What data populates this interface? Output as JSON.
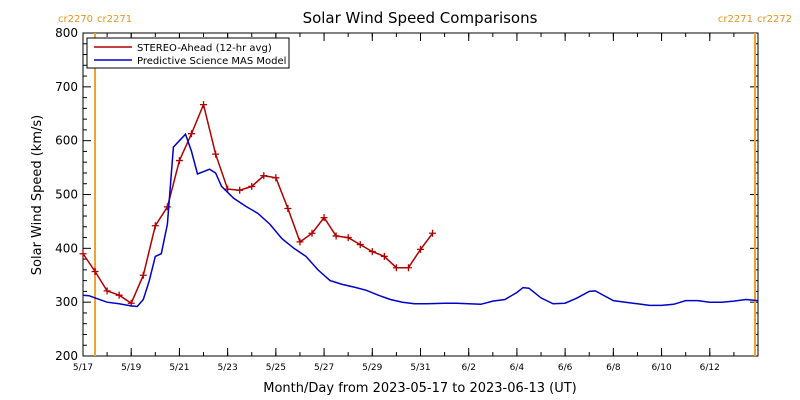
{
  "chart_data": {
    "type": "line",
    "title": "Solar Wind Speed Comparisons",
    "xlabel": "Month/Day from 2023-05-17 to 2023-06-13 (UT)",
    "ylabel": "Solar Wind Speed (km/s)",
    "xlim": [
      "2023-05-17",
      "2023-06-14"
    ],
    "ylim": [
      200,
      800
    ],
    "y_ticks": [
      200,
      300,
      400,
      500,
      600,
      700,
      800
    ],
    "x_ticks": [
      {
        "date": "2023-05-17",
        "label": "5/17"
      },
      {
        "date": "2023-05-19",
        "label": "5/19"
      },
      {
        "date": "2023-05-21",
        "label": "5/21"
      },
      {
        "date": "2023-05-23",
        "label": "5/23"
      },
      {
        "date": "2023-05-25",
        "label": "5/25"
      },
      {
        "date": "2023-05-27",
        "label": "5/27"
      },
      {
        "date": "2023-05-29",
        "label": "5/29"
      },
      {
        "date": "2023-05-31",
        "label": "5/31"
      },
      {
        "date": "2023-06-02",
        "label": "6/2"
      },
      {
        "date": "2023-06-04",
        "label": "6/4"
      },
      {
        "date": "2023-06-06",
        "label": "6/6"
      },
      {
        "date": "2023-06-08",
        "label": "6/8"
      },
      {
        "date": "2023-06-10",
        "label": "6/10"
      },
      {
        "date": "2023-06-12",
        "label": "6/12"
      }
    ],
    "carrington_markers": [
      {
        "date": "2023-05-17 12:00",
        "color": "#f0a030",
        "label_left": "cr2270",
        "label_right": "cr2271"
      },
      {
        "date": "2023-06-13 21:00",
        "color": "#f0a030",
        "label_left": "cr2271",
        "label_right": "cr2272"
      }
    ],
    "legend_position": "top-left",
    "grid": false,
    "series": [
      {
        "name": "STEREO-Ahead (12-hr avg)",
        "color": "#b00000",
        "markers": "plus",
        "points": [
          [
            "2023-05-17 00:00",
            390
          ],
          [
            "2023-05-17 12:00",
            357
          ],
          [
            "2023-05-18 00:00",
            321
          ],
          [
            "2023-05-18 12:00",
            313
          ],
          [
            "2023-05-19 00:00",
            298
          ],
          [
            "2023-05-19 12:00",
            350
          ],
          [
            "2023-05-20 00:00",
            442
          ],
          [
            "2023-05-20 12:00",
            477
          ],
          [
            "2023-05-21 00:00",
            563
          ],
          [
            "2023-05-21 12:00",
            613
          ],
          [
            "2023-05-22 00:00",
            667
          ],
          [
            "2023-05-22 12:00",
            575
          ],
          [
            "2023-05-23 00:00",
            510
          ],
          [
            "2023-05-23 12:00",
            508
          ],
          [
            "2023-05-24 00:00",
            515
          ],
          [
            "2023-05-24 12:00",
            535
          ],
          [
            "2023-05-25 00:00",
            531
          ],
          [
            "2023-05-25 12:00",
            474
          ],
          [
            "2023-05-26 00:00",
            412
          ],
          [
            "2023-05-26 12:00",
            428
          ],
          [
            "2023-05-27 00:00",
            457
          ],
          [
            "2023-05-27 12:00",
            423
          ],
          [
            "2023-05-28 00:00",
            420
          ],
          [
            "2023-05-28 12:00",
            407
          ],
          [
            "2023-05-29 00:00",
            394
          ],
          [
            "2023-05-29 12:00",
            385
          ],
          [
            "2023-05-30 00:00",
            364
          ],
          [
            "2023-05-30 12:00",
            364
          ],
          [
            "2023-05-31 00:00",
            398
          ],
          [
            "2023-05-31 12:00",
            428
          ]
        ]
      },
      {
        "name": "Predictive Science MAS Model",
        "color": "#0000c8",
        "markers": "none",
        "points": [
          [
            "2023-05-17 00:00",
            313
          ],
          [
            "2023-05-17 06:00",
            312
          ],
          [
            "2023-05-17 12:00",
            308
          ],
          [
            "2023-05-18 00:00",
            300
          ],
          [
            "2023-05-18 12:00",
            297
          ],
          [
            "2023-05-19 00:00",
            293
          ],
          [
            "2023-05-19 06:00",
            292
          ],
          [
            "2023-05-19 12:00",
            305
          ],
          [
            "2023-05-19 18:00",
            340
          ],
          [
            "2023-05-20 00:00",
            385
          ],
          [
            "2023-05-20 06:00",
            390
          ],
          [
            "2023-05-20 12:00",
            445
          ],
          [
            "2023-05-20 18:00",
            588
          ],
          [
            "2023-05-21 06:00",
            612
          ],
          [
            "2023-05-21 12:00",
            580
          ],
          [
            "2023-05-21 18:00",
            538
          ],
          [
            "2023-05-22 06:00",
            547
          ],
          [
            "2023-05-22 12:00",
            540
          ],
          [
            "2023-05-22 18:00",
            515
          ],
          [
            "2023-05-23 06:00",
            493
          ],
          [
            "2023-05-23 18:00",
            478
          ],
          [
            "2023-05-24 06:00",
            465
          ],
          [
            "2023-05-24 18:00",
            445
          ],
          [
            "2023-05-25 06:00",
            418
          ],
          [
            "2023-05-25 18:00",
            400
          ],
          [
            "2023-05-26 06:00",
            385
          ],
          [
            "2023-05-26 18:00",
            360
          ],
          [
            "2023-05-27 06:00",
            340
          ],
          [
            "2023-05-27 18:00",
            333
          ],
          [
            "2023-05-28 06:00",
            328
          ],
          [
            "2023-05-28 18:00",
            322
          ],
          [
            "2023-05-29 06:00",
            313
          ],
          [
            "2023-05-29 18:00",
            305
          ],
          [
            "2023-05-30 06:00",
            300
          ],
          [
            "2023-05-30 18:00",
            297
          ],
          [
            "2023-05-31 06:00",
            297
          ],
          [
            "2023-06-01 00:00",
            298
          ],
          [
            "2023-06-01 12:00",
            298
          ],
          [
            "2023-06-02 00:00",
            297
          ],
          [
            "2023-06-02 12:00",
            296
          ],
          [
            "2023-06-03 00:00",
            302
          ],
          [
            "2023-06-03 12:00",
            305
          ],
          [
            "2023-06-04 00:00",
            318
          ],
          [
            "2023-06-04 06:00",
            327
          ],
          [
            "2023-06-04 12:00",
            326
          ],
          [
            "2023-06-05 00:00",
            308
          ],
          [
            "2023-06-05 12:00",
            297
          ],
          [
            "2023-06-06 00:00",
            298
          ],
          [
            "2023-06-06 12:00",
            308
          ],
          [
            "2023-06-07 00:00",
            320
          ],
          [
            "2023-06-07 06:00",
            321
          ],
          [
            "2023-06-07 12:00",
            315
          ],
          [
            "2023-06-08 00:00",
            303
          ],
          [
            "2023-06-08 12:00",
            300
          ],
          [
            "2023-06-09 00:00",
            297
          ],
          [
            "2023-06-09 12:00",
            294
          ],
          [
            "2023-06-10 00:00",
            294
          ],
          [
            "2023-06-10 12:00",
            296
          ],
          [
            "2023-06-11 00:00",
            303
          ],
          [
            "2023-06-11 12:00",
            303
          ],
          [
            "2023-06-12 00:00",
            300
          ],
          [
            "2023-06-12 12:00",
            300
          ],
          [
            "2023-06-13 00:00",
            302
          ],
          [
            "2023-06-13 12:00",
            305
          ],
          [
            "2023-06-14 00:00",
            303
          ]
        ]
      }
    ]
  }
}
